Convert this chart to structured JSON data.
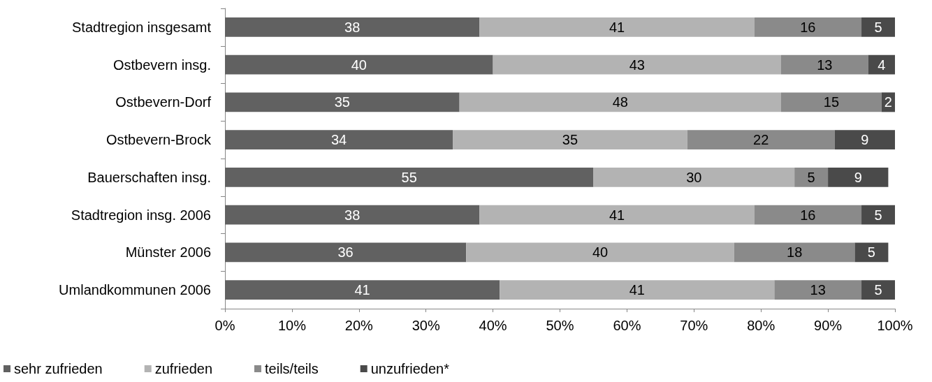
{
  "chart_data": {
    "type": "bar",
    "orientation": "horizontal",
    "stacked": true,
    "data_labels": true,
    "grid": false,
    "legend": "bottom",
    "categories": [
      "Stadtregion insgesamt",
      "Ostbevern insg.",
      "Ostbevern-Dorf",
      "Ostbevern-Brock",
      "Bauerschaften insg.",
      "Stadtregion insg. 2006",
      "Münster 2006",
      "Umlandkommunen 2006"
    ],
    "series": [
      {
        "name": "sehr zufrieden",
        "color": "#616161",
        "values": [
          38,
          40,
          35,
          34,
          55,
          38,
          36,
          41
        ]
      },
      {
        "name": "zufrieden",
        "color": "#b3b3b3",
        "values": [
          41,
          43,
          48,
          35,
          30,
          41,
          40,
          41
        ]
      },
      {
        "name": "teils/teils",
        "color": "#8a8a8a",
        "values": [
          16,
          13,
          15,
          22,
          5,
          16,
          18,
          13
        ]
      },
      {
        "name": "unzufrieden*",
        "color": "#4a4a4a",
        "values": [
          5,
          4,
          2,
          9,
          9,
          5,
          5,
          5
        ]
      }
    ],
    "xlim": [
      0,
      100
    ],
    "xticks": [
      {
        "value": 0,
        "label": "0%"
      },
      {
        "value": 10,
        "label": "10%"
      },
      {
        "value": 20,
        "label": "20%"
      },
      {
        "value": 30,
        "label": "30%"
      },
      {
        "value": 40,
        "label": "40%"
      },
      {
        "value": 50,
        "label": "50%"
      },
      {
        "value": 60,
        "label": "60%"
      },
      {
        "value": 70,
        "label": "70%"
      },
      {
        "value": 80,
        "label": "80%"
      },
      {
        "value": 90,
        "label": "90%"
      },
      {
        "value": 100,
        "label": "100%"
      }
    ]
  }
}
